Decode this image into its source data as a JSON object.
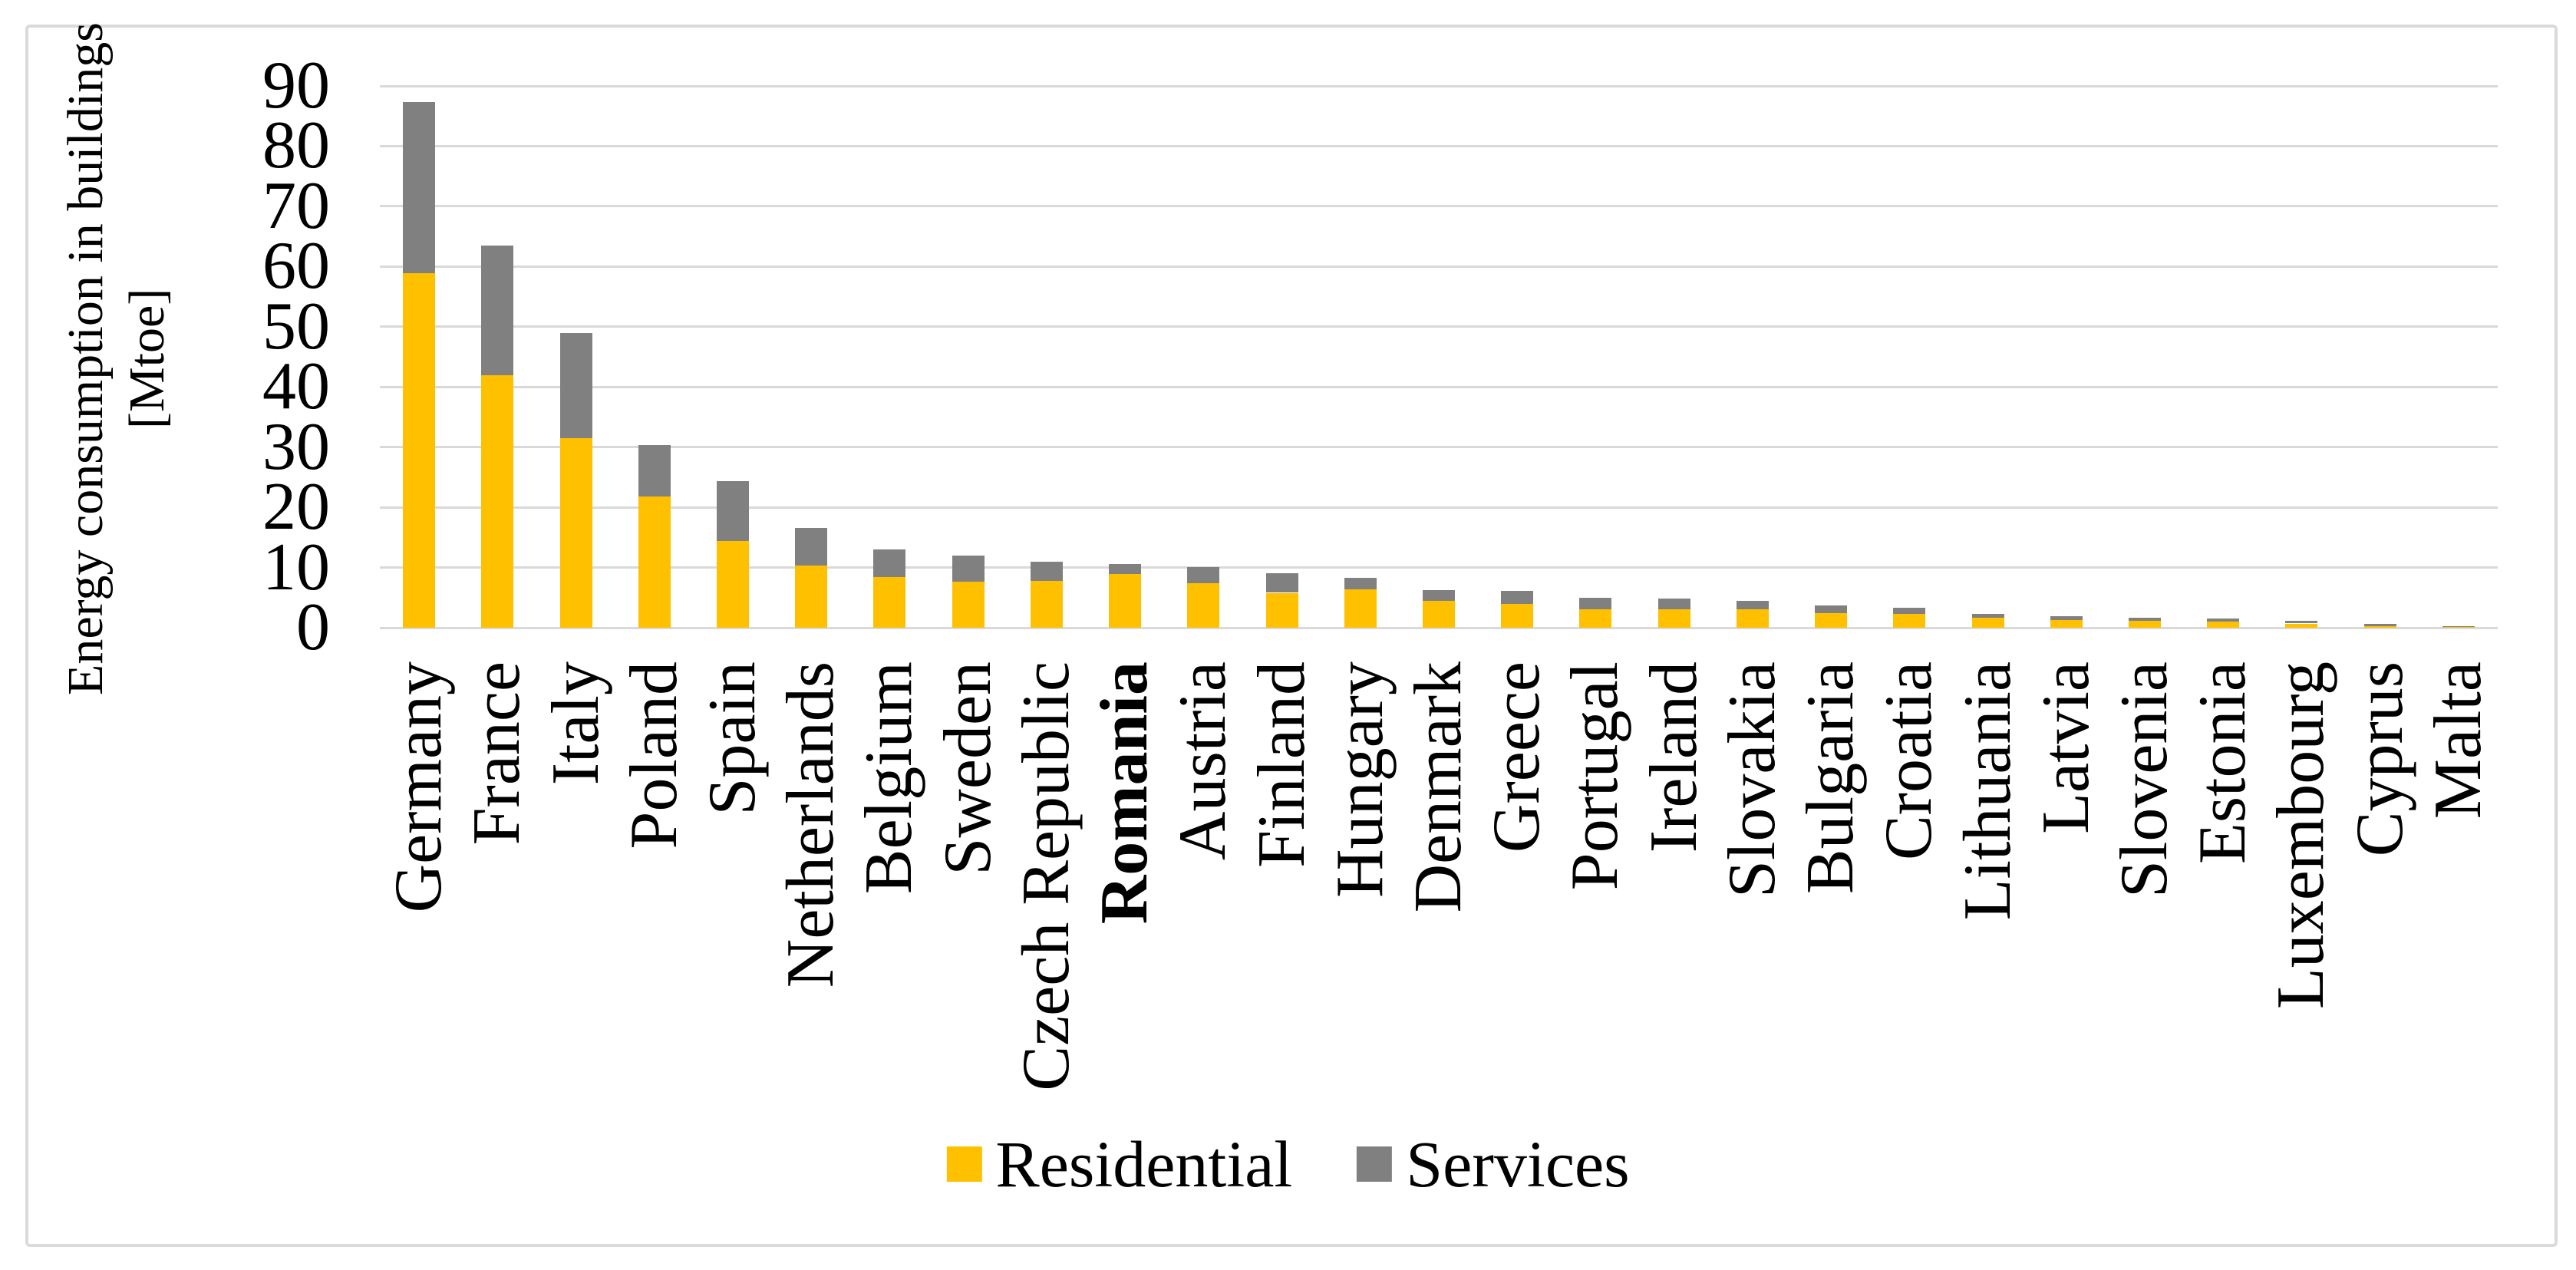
{
  "figure": {
    "background": "#ffffff",
    "frame_color": "#dadada"
  },
  "colors": {
    "residential": "#FFC000",
    "services": "#808080",
    "gridline": "#D9D9D9",
    "text": "#000000"
  },
  "legend": {
    "residential_label": "Residential",
    "services_label": "Services"
  },
  "chart_data": {
    "type": "bar",
    "stacked": true,
    "orientation": "vertical",
    "title": "",
    "ylabel": "Energy consumption in buildings [Mtoe]",
    "ylabel_line1": "Energy consumption in buildings",
    "ylabel_line2": "[Mtoe]",
    "xlabel": "",
    "ylim": [
      0,
      90
    ],
    "yticks": [
      0,
      10,
      20,
      30,
      40,
      50,
      60,
      70,
      80,
      90
    ],
    "grid": true,
    "legend_position": "bottom",
    "bold_category": "Romania",
    "categories": [
      "Germany",
      "France",
      "Italy",
      "Poland",
      "Spain",
      "Netherlands",
      "Belgium",
      "Sweden",
      "Czech Republic",
      "Romania",
      "Austria",
      "Finland",
      "Hungary",
      "Denmark",
      "Greece",
      "Portugal",
      "Ireland",
      "Slovakia",
      "Bulgaria",
      "Croatia",
      "Lithuania",
      "Latvia",
      "Slovenia",
      "Estonia",
      "Luxembourg",
      "Cyprus",
      "Malta"
    ],
    "series": [
      {
        "name": "Residential",
        "color": "#FFC000",
        "values": [
          58.9,
          42.0,
          31.5,
          21.8,
          14.4,
          10.3,
          8.4,
          7.7,
          7.8,
          8.9,
          7.4,
          5.8,
          6.4,
          4.5,
          4.0,
          3.0,
          3.0,
          3.0,
          2.4,
          2.3,
          1.7,
          1.3,
          1.2,
          1.0,
          0.7,
          0.3,
          0.1
        ]
      },
      {
        "name": "Services",
        "color": "#808080",
        "values": [
          28.4,
          21.5,
          17.5,
          8.6,
          10.0,
          6.3,
          4.6,
          4.3,
          3.1,
          1.7,
          2.7,
          3.2,
          1.9,
          1.7,
          2.1,
          2.0,
          1.9,
          1.5,
          1.3,
          1.0,
          0.6,
          0.6,
          0.4,
          0.5,
          0.4,
          0.3,
          0.1
        ]
      }
    ]
  }
}
